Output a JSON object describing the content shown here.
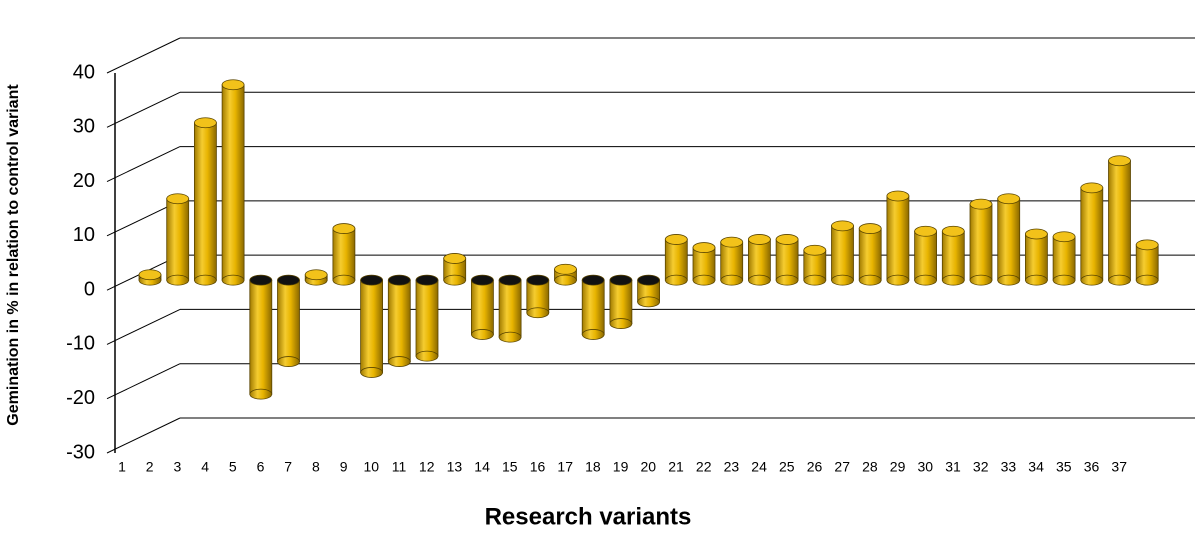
{
  "chart_data": {
    "type": "bar",
    "x_label": "Research variants",
    "y_label": "Gemination in % in relation to control variant",
    "categories": [
      "1",
      "2",
      "3",
      "4",
      "5",
      "6",
      "7",
      "8",
      "9",
      "10",
      "11",
      "12",
      "13",
      "14",
      "15",
      "16",
      "17",
      "18",
      "19",
      "20",
      "21",
      "22",
      "23",
      "24",
      "25",
      "26",
      "27",
      "28",
      "29",
      "30",
      "31",
      "32",
      "33",
      "34",
      "35",
      "36",
      "37"
    ],
    "values": [
      1,
      15,
      29,
      36,
      -21,
      -15,
      1,
      9.5,
      -17,
      -15,
      -14,
      4,
      -10,
      -10.5,
      -6,
      2,
      -10,
      -8,
      -4,
      7.5,
      6,
      7,
      7.5,
      7.5,
      5.5,
      10,
      9.5,
      15.5,
      9,
      9,
      14,
      15,
      8.5,
      8,
      17,
      22,
      6.5
    ],
    "color": "#e8b400",
    "ylim": [
      -30,
      40
    ],
    "yticks": [
      -30,
      -20,
      -10,
      0,
      10,
      20,
      30,
      40
    ],
    "grid": true
  }
}
